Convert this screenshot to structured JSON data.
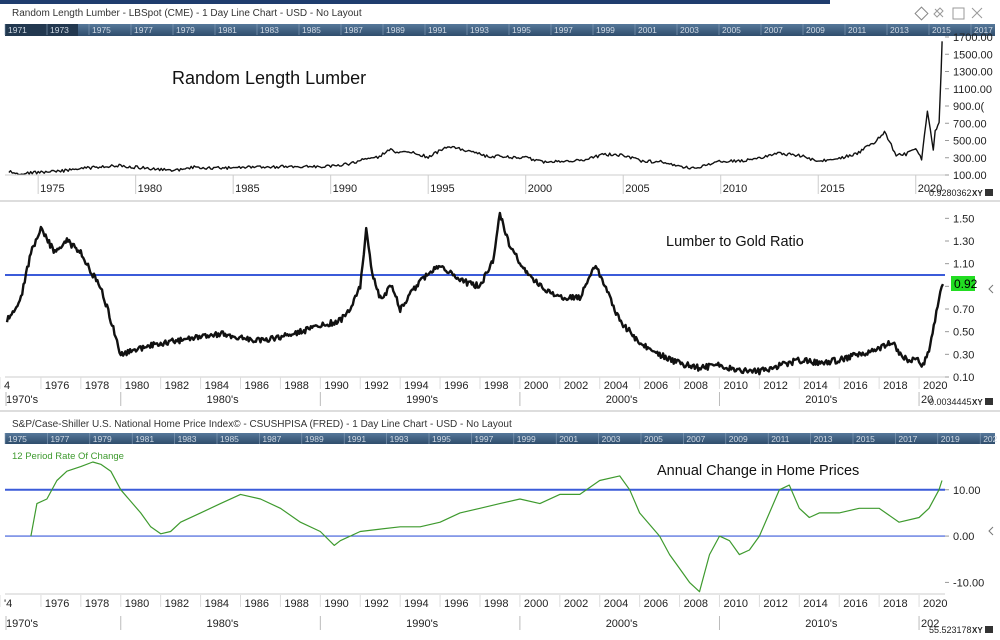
{
  "panels": [
    {
      "id": "lumber",
      "header": "Random Length Lumber - LBSpot (CME) - 1 Day Line Chart - USD - No Layout",
      "annotation": "Random Length Lumber",
      "nav_years": [
        "1971",
        "1973",
        "1975",
        "1977",
        "1979",
        "1981",
        "1983",
        "1985",
        "1987",
        "1989",
        "1991",
        "1993",
        "1995",
        "1997",
        "1999",
        "2001",
        "2003",
        "2005",
        "2007",
        "2009",
        "2011",
        "2013",
        "2015",
        "2017",
        "2019"
      ],
      "x_ticks": [
        "1975",
        "1980",
        "1985",
        "1990",
        "1995",
        "2000",
        "2005",
        "2010",
        "2015",
        "2020"
      ],
      "y_ticks": [
        "1700.00",
        "1500.00",
        "1300.00",
        "1100.00",
        "900.00",
        "700.00",
        "500.00",
        "300.00",
        "100.00"
      ],
      "y_ticks_display": [
        "1700.00",
        "1500.00",
        "1300.00",
        "1100.00",
        "900.0(",
        "700.00",
        "500.00",
        "300.00",
        "100.00"
      ],
      "corner_value": "0.9280362",
      "xy_label": "XY",
      "lock_icon": "lock-icon"
    },
    {
      "id": "ratio",
      "annotation": "Lumber to Gold Ratio",
      "x_ticks": [
        "4",
        "1976",
        "1978",
        "1980",
        "1982",
        "1984",
        "1986",
        "1988",
        "1990",
        "1992",
        "1994",
        "1996",
        "1998",
        "2000",
        "2002",
        "2004",
        "2006",
        "2008",
        "2010",
        "2012",
        "2014",
        "2016",
        "2018",
        "2020"
      ],
      "decades": [
        "1970's",
        "1980's",
        "1990's",
        "2000's",
        "2010's",
        "20"
      ],
      "y_ticks": [
        "1.50",
        "1.30",
        "1.10",
        "0.90",
        "0.70",
        "0.50",
        "0.30",
        "0.10"
      ],
      "last_value": "0.92",
      "reference_line": 1.0,
      "corner_value": "0.0034445",
      "xy_label": "XY"
    },
    {
      "id": "homeprice",
      "header": "S&P/Case-Shiller U.S. National Home Price Index© - CSUSHPISA (FRED) - 1 Day Line Chart - USD - No Layout",
      "indicator_label": "12 Period Rate Of Change",
      "annotation": "Annual Change in Home Prices",
      "nav_years": [
        "1975",
        "1977",
        "1979",
        "1981",
        "1983",
        "1985",
        "1987",
        "1989",
        "1991",
        "1993",
        "1995",
        "1997",
        "1999",
        "2001",
        "2003",
        "2005",
        "2007",
        "2009",
        "2011",
        "2013",
        "2015",
        "2017",
        "2019",
        "202"
      ],
      "x_ticks": [
        "'4",
        "1976",
        "1978",
        "1980",
        "1982",
        "1984",
        "1986",
        "1988",
        "1990",
        "1992",
        "1994",
        "1996",
        "1998",
        "2000",
        "2002",
        "2004",
        "2006",
        "2008",
        "2010",
        "2012",
        "2014",
        "2016",
        "2018",
        "2020"
      ],
      "decades": [
        "1970's",
        "1980's",
        "1990's",
        "2000's",
        "2010's",
        "202"
      ],
      "y_ticks": [
        "10.00",
        "0.00",
        "-10.00"
      ],
      "corner_value": "55.523178",
      "xy_label": "XY"
    }
  ],
  "colors": {
    "nav_bar": "#3e5f80",
    "reference_line": "#3b5bd9",
    "price_line": "#111111",
    "roc_line": "#3e9a2e",
    "last_value_badge": "#22dd22"
  },
  "chart_data": [
    {
      "type": "line",
      "title": "Random Length Lumber",
      "x_unit": "year",
      "xlim": [
        1973.3,
        2021.5
      ],
      "ylim": [
        100,
        1700
      ],
      "y_log": false,
      "grid": false,
      "series": [
        {
          "x": [
            1973.5,
            1974,
            1975,
            1976,
            1977,
            1978,
            1979,
            1980,
            1981,
            1982,
            1983,
            1984,
            1985,
            1986,
            1987,
            1988,
            1989,
            1990,
            1991,
            1992,
            1992.5,
            1993,
            1993.4,
            1994,
            1995,
            1996,
            1996.5,
            1997,
            1998,
            1999,
            2000,
            2001,
            2002,
            2003,
            2004,
            2005,
            2006,
            2007,
            2008,
            2008.5,
            2009,
            2010,
            2011,
            2012,
            2013,
            2014,
            2015,
            2016,
            2017,
            2018,
            2018.4,
            2019,
            2019.5,
            2020,
            2020.3,
            2020.6,
            2020.9,
            2021,
            2021.2,
            2021.3,
            2021.35
          ],
          "y": [
            140,
            120,
            130,
            140,
            170,
            190,
            210,
            190,
            170,
            150,
            190,
            180,
            180,
            190,
            190,
            200,
            200,
            200,
            230,
            300,
            310,
            400,
            350,
            370,
            310,
            430,
            410,
            380,
            320,
            310,
            300,
            250,
            270,
            270,
            340,
            330,
            260,
            250,
            200,
            170,
            200,
            260,
            260,
            300,
            350,
            330,
            260,
            290,
            350,
            500,
            600,
            330,
            340,
            400,
            280,
            850,
            400,
            600,
            700,
            1300,
            1650
          ]
        }
      ]
    },
    {
      "type": "line",
      "title": "Lumber to Gold Ratio",
      "x_unit": "year",
      "xlim": [
        1974.2,
        2021.3
      ],
      "ylim": [
        0.1,
        1.6
      ],
      "grid": false,
      "reference_lines": [
        1.0
      ],
      "series": [
        {
          "x": [
            1974.3,
            1975,
            1975.5,
            1976,
            1976.7,
            1977.3,
            1978,
            1978.6,
            1979,
            1979.5,
            1980,
            1981,
            1982,
            1983,
            1984,
            1985,
            1986,
            1987,
            1988,
            1989,
            1990,
            1991,
            1991.5,
            1992,
            1992.3,
            1992.6,
            1993,
            1993.6,
            1994,
            1995,
            1996,
            1997,
            1998,
            1998.7,
            1999,
            1999.4,
            2000,
            2001,
            2002,
            2003,
            2003.8,
            2004,
            2004.5,
            2005,
            2006,
            2007,
            2008,
            2009,
            2010,
            2011,
            2012,
            2013,
            2014,
            2015,
            2016,
            2017,
            2018,
            2018.7,
            2019,
            2019.5,
            2020,
            2020.2,
            2020.5,
            2020.8,
            2021,
            2021.2
          ],
          "y": [
            0.6,
            0.8,
            1.2,
            1.4,
            1.2,
            1.3,
            1.2,
            1.0,
            0.9,
            0.6,
            0.3,
            0.35,
            0.4,
            0.42,
            0.45,
            0.48,
            0.45,
            0.42,
            0.45,
            0.5,
            0.55,
            0.6,
            0.7,
            0.9,
            1.4,
            1.0,
            0.8,
            0.9,
            0.7,
            0.95,
            1.1,
            0.95,
            0.9,
            1.15,
            1.55,
            1.3,
            1.1,
            0.9,
            0.8,
            0.8,
            1.1,
            1.0,
            0.8,
            0.6,
            0.4,
            0.3,
            0.22,
            0.18,
            0.2,
            0.15,
            0.15,
            0.2,
            0.25,
            0.22,
            0.25,
            0.3,
            0.35,
            0.42,
            0.3,
            0.25,
            0.25,
            0.2,
            0.35,
            0.6,
            0.8,
            0.92
          ]
        }
      ]
    },
    {
      "type": "line",
      "title": "Annual Change in Home Prices",
      "x_unit": "year",
      "xlim": [
        1974.2,
        2021.3
      ],
      "ylim": [
        -12.5,
        17.5
      ],
      "grid": false,
      "reference_lines": [
        10.0,
        0.0
      ],
      "series": [
        {
          "name": "12 Period Rate Of Change",
          "x": [
            1975.5,
            1975.8,
            1976.3,
            1976.8,
            1977.3,
            1978,
            1978.6,
            1979,
            1979.5,
            1980,
            1981,
            1981.5,
            1982,
            1982.5,
            1983,
            1984,
            1985,
            1986,
            1987,
            1988,
            1989,
            1990,
            1990.7,
            1991,
            1992,
            1993,
            1994,
            1995,
            1996,
            1997,
            1998,
            1999,
            2000,
            2001,
            2002,
            2003,
            2004,
            2005,
            2005.5,
            2006,
            2007,
            2007.5,
            2008,
            2008.5,
            2009,
            2009.5,
            2010,
            2010.5,
            2011,
            2011.5,
            2012,
            2013,
            2013.5,
            2014,
            2014.5,
            2015,
            2016,
            2017,
            2018,
            2019,
            2020,
            2020.5,
            2021,
            2021.15
          ],
          "y": [
            0,
            7,
            8,
            12,
            14,
            15,
            16,
            15.5,
            14,
            10,
            5,
            2,
            0.5,
            1,
            3,
            5,
            7,
            9,
            8,
            6,
            3,
            1,
            -2,
            -1,
            1,
            1.5,
            2,
            2,
            3,
            5,
            6,
            7,
            8,
            7,
            9,
            9,
            12,
            13,
            10,
            5,
            0,
            -4,
            -7,
            -10,
            -12,
            -4,
            0,
            -1,
            -4,
            -3,
            0,
            10,
            11,
            6,
            4,
            5,
            5,
            6,
            6,
            3,
            4,
            6,
            10,
            12
          ]
        }
      ]
    }
  ]
}
